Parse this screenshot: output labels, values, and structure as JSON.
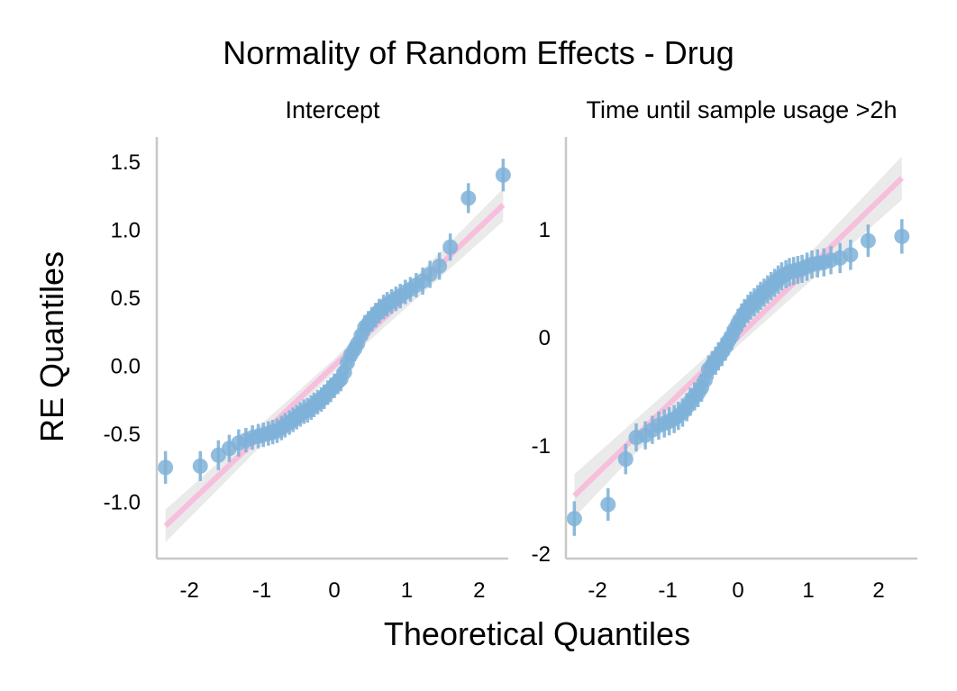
{
  "title": "Normality of Random Effects - Drug",
  "xlabel": "Theoretical Quantiles",
  "ylabel": "RE Quantiles",
  "colors": {
    "points": "#7fb2d8",
    "reference_line": "#f7bfdc",
    "band": "#d9d9d9",
    "axis": "#c8c8c8"
  },
  "chart_data": [
    {
      "type": "scatter",
      "panel_title": "Intercept",
      "xlim": [
        -2.45,
        2.4
      ],
      "ylim": [
        -1.42,
        1.68
      ],
      "xticks": [
        -2,
        -1,
        0,
        1,
        2
      ],
      "xtick_labels": [
        "-2",
        "-1",
        "0",
        "1",
        "2"
      ],
      "yticks": [
        -1.0,
        -0.5,
        0.0,
        0.5,
        1.0,
        1.5
      ],
      "ytick_labels": [
        "-1.0",
        "-0.5",
        "0.0",
        "0.5",
        "1.0",
        "1.5"
      ],
      "reference_line": {
        "x": [
          -2.33,
          2.33
        ],
        "y": [
          -1.18,
          1.18
        ]
      },
      "band_halfwidth": 0.06,
      "points": [
        [
          -2.33,
          -0.75,
          0.12
        ],
        [
          -1.85,
          -0.74,
          0.11
        ],
        [
          -1.6,
          -0.66,
          0.11
        ],
        [
          -1.45,
          -0.61,
          0.1
        ],
        [
          -1.32,
          -0.57,
          0.1
        ],
        [
          -1.22,
          -0.55,
          0.09
        ],
        [
          -1.13,
          -0.53,
          0.09
        ],
        [
          -1.05,
          -0.52,
          0.09
        ],
        [
          -0.98,
          -0.51,
          0.09
        ],
        [
          -0.91,
          -0.5,
          0.09
        ],
        [
          -0.85,
          -0.49,
          0.09
        ],
        [
          -0.79,
          -0.48,
          0.09
        ],
        [
          -0.73,
          -0.46,
          0.09
        ],
        [
          -0.68,
          -0.44,
          0.09
        ],
        [
          -0.62,
          -0.42,
          0.09
        ],
        [
          -0.57,
          -0.4,
          0.09
        ],
        [
          -0.52,
          -0.38,
          0.09
        ],
        [
          -0.47,
          -0.36,
          0.09
        ],
        [
          -0.42,
          -0.34,
          0.09
        ],
        [
          -0.37,
          -0.33,
          0.09
        ],
        [
          -0.32,
          -0.31,
          0.09
        ],
        [
          -0.28,
          -0.29,
          0.09
        ],
        [
          -0.23,
          -0.27,
          0.09
        ],
        [
          -0.18,
          -0.25,
          0.09
        ],
        [
          -0.14,
          -0.23,
          0.09
        ],
        [
          -0.09,
          -0.2,
          0.09
        ],
        [
          -0.05,
          -0.18,
          0.09
        ],
        [
          0.0,
          -0.15,
          0.09
        ],
        [
          0.05,
          -0.12,
          0.09
        ],
        [
          0.09,
          -0.1,
          0.09
        ],
        [
          0.14,
          -0.05,
          0.09
        ],
        [
          0.18,
          0.02,
          0.09
        ],
        [
          0.23,
          0.08,
          0.09
        ],
        [
          0.28,
          0.12,
          0.09
        ],
        [
          0.32,
          0.16,
          0.09
        ],
        [
          0.37,
          0.22,
          0.09
        ],
        [
          0.42,
          0.28,
          0.09
        ],
        [
          0.47,
          0.31,
          0.09
        ],
        [
          0.52,
          0.34,
          0.09
        ],
        [
          0.57,
          0.37,
          0.09
        ],
        [
          0.62,
          0.4,
          0.09
        ],
        [
          0.68,
          0.43,
          0.09
        ],
        [
          0.73,
          0.45,
          0.09
        ],
        [
          0.79,
          0.47,
          0.09
        ],
        [
          0.85,
          0.49,
          0.09
        ],
        [
          0.91,
          0.51,
          0.09
        ],
        [
          0.98,
          0.54,
          0.09
        ],
        [
          1.05,
          0.56,
          0.09
        ],
        [
          1.13,
          0.59,
          0.09
        ],
        [
          1.22,
          0.62,
          0.1
        ],
        [
          1.32,
          0.67,
          0.1
        ],
        [
          1.45,
          0.73,
          0.1
        ],
        [
          1.6,
          0.87,
          0.1
        ],
        [
          1.85,
          1.23,
          0.11
        ],
        [
          2.33,
          1.4,
          0.12
        ]
      ]
    },
    {
      "type": "scatter",
      "panel_title": "Time until sample usage >2h",
      "xlim": [
        -2.45,
        2.55
      ],
      "ylim": [
        -2.05,
        1.85
      ],
      "xticks": [
        -2,
        -1,
        0,
        1,
        2
      ],
      "xtick_labels": [
        "-2",
        "-1",
        "0",
        "1",
        "2"
      ],
      "yticks": [
        -2,
        -1,
        0,
        1
      ],
      "ytick_labels": [
        "-2",
        "-1",
        "0",
        "1"
      ],
      "reference_line": {
        "x": [
          -2.33,
          2.33
        ],
        "y": [
          -1.47,
          1.47
        ]
      },
      "band_halfwidth": 0.1,
      "points": [
        [
          -2.33,
          -1.68,
          0.16
        ],
        [
          -1.85,
          -1.55,
          0.15
        ],
        [
          -1.6,
          -1.13,
          0.14
        ],
        [
          -1.45,
          -0.93,
          0.13
        ],
        [
          -1.32,
          -0.91,
          0.13
        ],
        [
          -1.22,
          -0.86,
          0.13
        ],
        [
          -1.13,
          -0.82,
          0.13
        ],
        [
          -1.05,
          -0.8,
          0.13
        ],
        [
          -0.98,
          -0.78,
          0.13
        ],
        [
          -0.91,
          -0.76,
          0.13
        ],
        [
          -0.85,
          -0.73,
          0.13
        ],
        [
          -0.79,
          -0.7,
          0.13
        ],
        [
          -0.73,
          -0.65,
          0.13
        ],
        [
          -0.68,
          -0.6,
          0.13
        ],
        [
          -0.62,
          -0.55,
          0.13
        ],
        [
          -0.57,
          -0.52,
          0.13
        ],
        [
          -0.52,
          -0.47,
          0.13
        ],
        [
          -0.47,
          -0.4,
          0.13
        ],
        [
          -0.42,
          -0.3,
          0.13
        ],
        [
          -0.37,
          -0.26,
          0.13
        ],
        [
          -0.32,
          -0.22,
          0.13
        ],
        [
          -0.28,
          -0.18,
          0.13
        ],
        [
          -0.23,
          -0.14,
          0.13
        ],
        [
          -0.18,
          -0.09,
          0.13
        ],
        [
          -0.14,
          -0.04,
          0.13
        ],
        [
          -0.09,
          0.01,
          0.13
        ],
        [
          -0.05,
          0.07,
          0.13
        ],
        [
          0.0,
          0.13,
          0.13
        ],
        [
          0.05,
          0.18,
          0.13
        ],
        [
          0.09,
          0.22,
          0.13
        ],
        [
          0.14,
          0.26,
          0.13
        ],
        [
          0.18,
          0.29,
          0.13
        ],
        [
          0.23,
          0.32,
          0.13
        ],
        [
          0.28,
          0.35,
          0.13
        ],
        [
          0.32,
          0.38,
          0.13
        ],
        [
          0.37,
          0.41,
          0.13
        ],
        [
          0.42,
          0.44,
          0.13
        ],
        [
          0.47,
          0.47,
          0.13
        ],
        [
          0.52,
          0.5,
          0.13
        ],
        [
          0.57,
          0.53,
          0.13
        ],
        [
          0.62,
          0.56,
          0.13
        ],
        [
          0.68,
          0.58,
          0.13
        ],
        [
          0.73,
          0.6,
          0.13
        ],
        [
          0.79,
          0.61,
          0.13
        ],
        [
          0.85,
          0.62,
          0.13
        ],
        [
          0.91,
          0.63,
          0.13
        ],
        [
          0.98,
          0.65,
          0.13
        ],
        [
          1.05,
          0.67,
          0.13
        ],
        [
          1.13,
          0.68,
          0.13
        ],
        [
          1.22,
          0.69,
          0.13
        ],
        [
          1.32,
          0.71,
          0.13
        ],
        [
          1.45,
          0.73,
          0.14
        ],
        [
          1.6,
          0.76,
          0.14
        ],
        [
          1.85,
          0.89,
          0.15
        ],
        [
          2.33,
          0.93,
          0.16
        ]
      ]
    }
  ]
}
